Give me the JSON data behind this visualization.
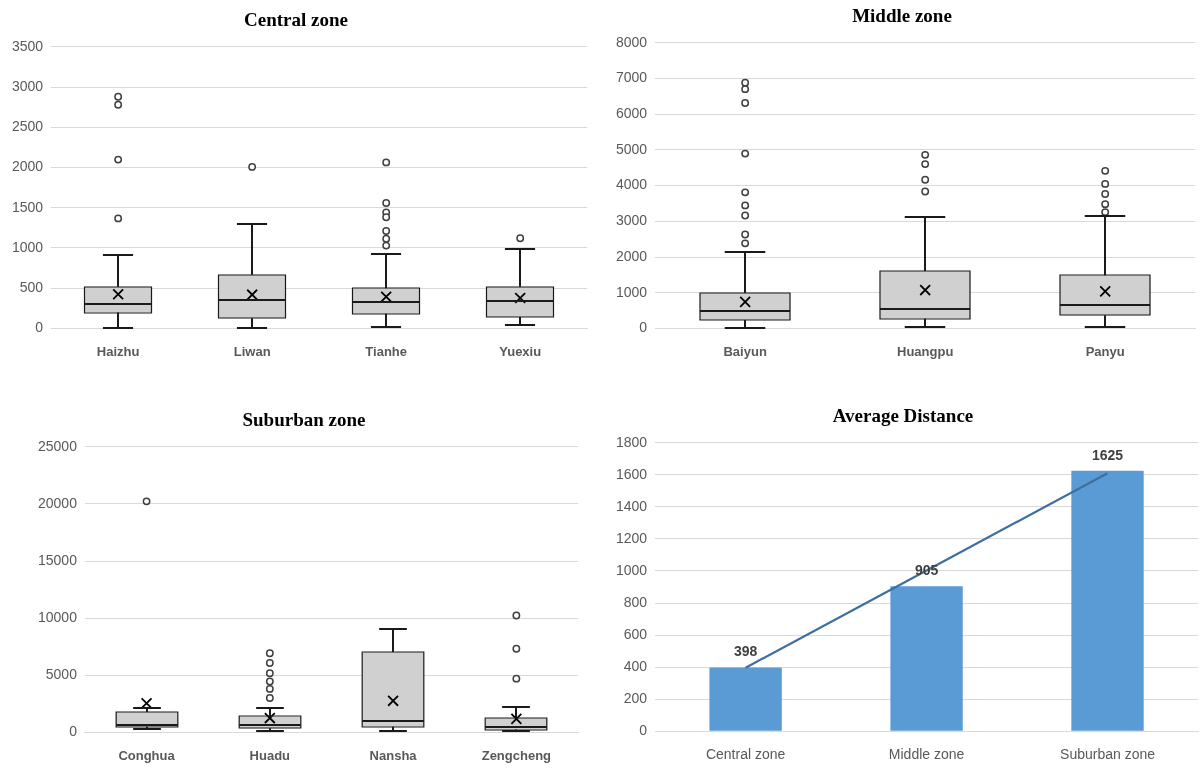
{
  "chart_data": [
    {
      "type": "box",
      "title": "Central zone",
      "categories": [
        "Haizhu",
        "Liwan",
        "Tianhe",
        "Yuexiu"
      ],
      "color": "#d0d0d0",
      "ylim": [
        0,
        3500
      ],
      "yticks": [
        0,
        500,
        1000,
        1500,
        2000,
        2500,
        3000,
        3500
      ],
      "grid": "y",
      "boxes": [
        {
          "low": 0,
          "q1": 197,
          "median": 303,
          "q3": 519,
          "high": 908,
          "mean": 424,
          "outliers": [
            2880,
            2779,
            2098,
            1367
          ]
        },
        {
          "low": 0,
          "q1": 126,
          "median": 358,
          "q3": 666,
          "high": 1296,
          "mean": 419,
          "outliers": [
            2007
          ]
        },
        {
          "low": 20,
          "q1": 182,
          "median": 328,
          "q3": 499,
          "high": 928,
          "mean": 393,
          "outliers": [
            2063,
            1558,
            1442,
            1382,
            1210,
            1114,
            1029
          ]
        },
        {
          "low": 40,
          "q1": 141,
          "median": 343,
          "q3": 519,
          "high": 993,
          "mean": 378,
          "outliers": [
            1120
          ]
        }
      ]
    },
    {
      "type": "box",
      "title": "Middle zone",
      "categories": [
        "Baiyun",
        "Huangpu",
        "Panyu"
      ],
      "color": "#d0d0d0",
      "ylim": [
        0,
        8000
      ],
      "yticks": [
        0,
        1000,
        2000,
        3000,
        4000,
        5000,
        6000,
        7000,
        8000
      ],
      "grid": "y",
      "boxes": [
        {
          "low": 0,
          "q1": 236,
          "median": 496,
          "q3": 991,
          "high": 2148,
          "mean": 743,
          "outliers": [
            6879,
            6702,
            6313,
            4897,
            3811,
            3445,
            3162,
            2631,
            2383
          ]
        },
        {
          "low": 47,
          "q1": 271,
          "median": 555,
          "q3": 1605,
          "high": 3127,
          "mean": 1074,
          "outliers": [
            4861,
            4602,
            4165,
            3835
          ]
        },
        {
          "low": 47,
          "q1": 366,
          "median": 649,
          "q3": 1487,
          "high": 3162,
          "mean": 1038,
          "outliers": [
            4413,
            4047,
            3764,
            3481,
            3257
          ]
        }
      ]
    },
    {
      "type": "box",
      "title": "Suburban zone",
      "categories": [
        "Conghua",
        "Huadu",
        "Nansha",
        "Zengcheng"
      ],
      "color": "#d0d0d0",
      "ylim": [
        0,
        25000
      ],
      "yticks": [
        0,
        5000,
        10000,
        15000,
        20000,
        25000
      ],
      "grid": "y",
      "boxes": [
        {
          "low": 287,
          "q1": 503,
          "median": 611,
          "q3": 1796,
          "high": 2119,
          "mean": 2550,
          "outliers": [
            20223
          ]
        },
        {
          "low": 108,
          "q1": 359,
          "median": 611,
          "q3": 1401,
          "high": 2155,
          "mean": 1257,
          "outliers": [
            6932,
            6070,
            5172,
            4454,
            3807,
            3017
          ]
        },
        {
          "low": 108,
          "q1": 503,
          "median": 970,
          "q3": 7040,
          "high": 9088,
          "mean": 2766
        },
        {
          "low": 144,
          "q1": 251,
          "median": 503,
          "q3": 1257,
          "high": 2263,
          "mean": 1185,
          "outliers": [
            10237,
            7328,
            4705
          ]
        }
      ]
    },
    {
      "type": "bar",
      "title": "Average Distance",
      "categories": [
        "Central zone",
        "Middle zone",
        "Suburban zone"
      ],
      "ylim": [
        0,
        1800
      ],
      "yticks": [
        0,
        200,
        400,
        600,
        800,
        1000,
        1200,
        1400,
        1600,
        1800
      ],
      "grid": "y",
      "series": [
        {
          "type": "bar",
          "color": "#5b9bd5",
          "values": [
            398,
            905,
            1625
          ],
          "value_labels": [
            "398",
            "905",
            "1625"
          ]
        },
        {
          "type": "line",
          "color": "#3f6f9f",
          "values": [
            396,
            1003,
            1610
          ]
        }
      ]
    }
  ]
}
